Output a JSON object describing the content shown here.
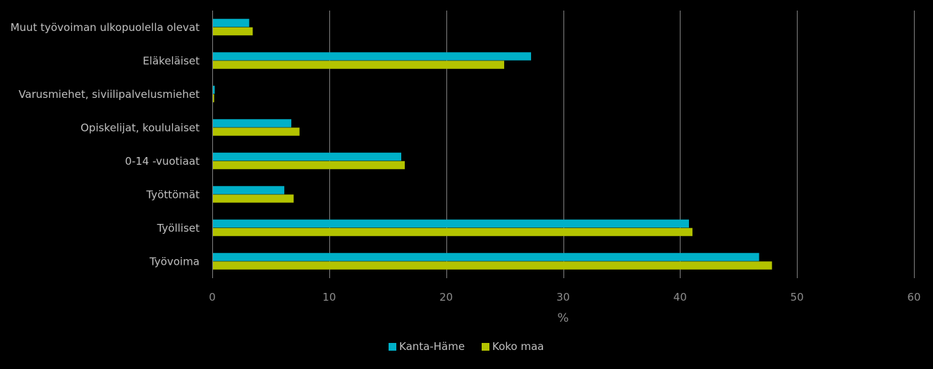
{
  "chart_data": {
    "type": "bar",
    "orientation": "horizontal",
    "categories": [
      "Muut työvoiman ulkopuolella olevat",
      "Eläkeläiset",
      "Varusmiehet, siviilipalvelusmiehet",
      "Opiskelijat, koululaiset",
      "0-14 -vuotiaat",
      "Työttömät",
      "Työlliset",
      "Työvoima"
    ],
    "series": [
      {
        "name": "Kanta-Häme",
        "color": "#00b0c8",
        "values": [
          3.1,
          27.2,
          0.15,
          6.7,
          16.1,
          6.1,
          40.7,
          46.7
        ]
      },
      {
        "name": "Koko maa",
        "color": "#b3c300",
        "values": [
          3.4,
          24.9,
          0.1,
          7.4,
          16.4,
          6.9,
          41.0,
          47.8
        ]
      }
    ],
    "xlabel": "%",
    "xlim": [
      0,
      60
    ],
    "xticks": [
      "0",
      "10",
      "20",
      "30",
      "40",
      "50",
      "60"
    ],
    "grid": true,
    "legend_position": "bottom"
  }
}
